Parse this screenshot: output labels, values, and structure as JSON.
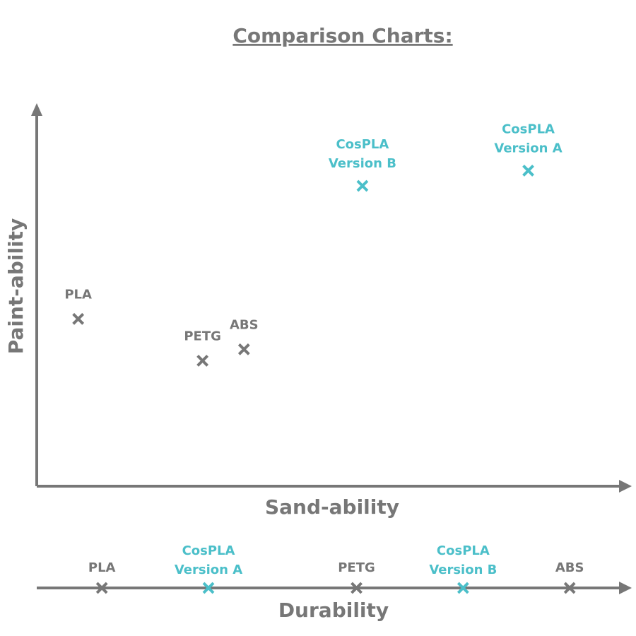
{
  "chart_data": [
    {
      "type": "scatter",
      "title": "Comparison Charts:",
      "xlabel": "Sand-ability",
      "ylabel": "Paint-ability",
      "xlim": [
        0,
        10
      ],
      "ylim": [
        0,
        10
      ],
      "axis_color": "#777",
      "points": [
        {
          "label": [
            "PLA"
          ],
          "x": 0.7,
          "y": 4.4,
          "color": "#777"
        },
        {
          "label": [
            "PETG"
          ],
          "x": 2.8,
          "y": 3.3,
          "color": "#777"
        },
        {
          "label": [
            "ABS"
          ],
          "x": 3.5,
          "y": 3.6,
          "color": "#777"
        },
        {
          "label": [
            "CosPLA",
            "Version B"
          ],
          "x": 5.5,
          "y": 7.9,
          "color": "#4bbfc9"
        },
        {
          "label": [
            "CosPLA",
            "Version A"
          ],
          "x": 8.3,
          "y": 8.3,
          "color": "#4bbfc9"
        }
      ]
    },
    {
      "type": "strip",
      "xlabel": "Durability",
      "xlim": [
        0,
        10
      ],
      "axis_color": "#777",
      "points": [
        {
          "label": [
            "PLA"
          ],
          "x": 1.1,
          "color": "#777"
        },
        {
          "label": [
            "CosPLA",
            "Version A"
          ],
          "x": 2.9,
          "color": "#4bbfc9"
        },
        {
          "label": [
            "PETG"
          ],
          "x": 5.4,
          "color": "#777"
        },
        {
          "label": [
            "CosPLA",
            "Version B"
          ],
          "x": 7.2,
          "color": "#4bbfc9"
        },
        {
          "label": [
            "ABS"
          ],
          "x": 9.0,
          "color": "#777"
        }
      ]
    }
  ]
}
